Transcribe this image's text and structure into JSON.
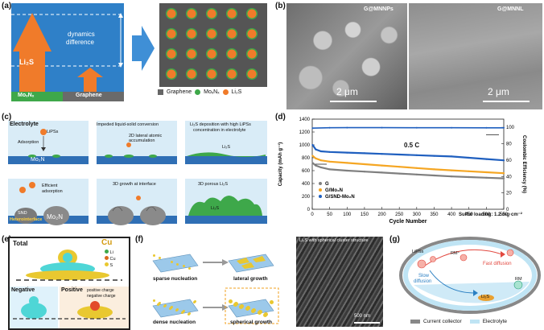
{
  "panels": {
    "a": {
      "label": "(a)",
      "arrow_left_text": "Li₂S",
      "dynamics_text_1": "dynamics",
      "dynamics_text_2": "difference",
      "base_left": "MoₓNₓ",
      "base_right": "Graphene",
      "legend": [
        "Graphene",
        "MoₓNₓ",
        "Li₂S"
      ]
    },
    "b": {
      "label": "(b)",
      "left_title": "G@MNNPs",
      "right_title": "G@MNNL",
      "scale_left": "2 μm",
      "scale_right": "2 μm"
    },
    "c": {
      "label": "(c)",
      "electrolyte": "Electrolyte",
      "lipss": "LiPSs",
      "adsorption": "Adsorption",
      "mo2n_top": "Mo₂N",
      "impeded": "Impeded liquid-solid conversion",
      "lateral": "2D lateral atomic accumulation",
      "deposition_1": "Li₂S deposition with high LiPSs",
      "deposition_2": "concentration in electrolyte",
      "li2s_top": "Li₂S",
      "efficient_1": "Efficient",
      "efficient_2": "adsorption",
      "snd": "SND",
      "mo2n_bottom": "Mo₂N",
      "heterointerface": "Heterointerface",
      "growth_3d": "3D growth at interface",
      "porous": "3D porous Li₂S",
      "li2s_bottom": "Li₂S"
    },
    "d": {
      "label": "(d)",
      "rate": "0.5 C",
      "loading": "Sulfur loading: 1.2 mg·cm⁻²"
    },
    "e": {
      "label": "(e)",
      "total": "Total",
      "cu_big": "Cu",
      "legend": [
        "Li",
        "Cu",
        "S"
      ],
      "negative": "Negative",
      "positive": "Positive",
      "note_1": "positive charge",
      "note_2": "negative charge"
    },
    "f": {
      "label": "(f)",
      "sparse": "sparse nucleation",
      "lateral": "lateral growth",
      "dense": "dense nucleation",
      "spherical": "spherical growth",
      "sem_title": "Li₂S with spherical cluster structure",
      "scale": "500 nm"
    },
    "g": {
      "label": "(g)",
      "lipss": "LiPSs",
      "rm_plus": "RM⁺",
      "fast": "Fast diffusion",
      "slow_1": "Slow",
      "slow_2": "diffusion",
      "rm": "RM",
      "li2s": "Li₂S",
      "legend_collector": "Current collector",
      "legend_electrolyte": "Electrolyte"
    }
  },
  "chart_data": {
    "type": "scatter",
    "title": "",
    "xlabel": "Cycle Number",
    "ylabel": "Capacity (mAh g⁻¹)",
    "y2label": "Coulombic Efficiency (%)",
    "xlim": [
      0,
      550
    ],
    "ylim": [
      0,
      1400
    ],
    "y2lim": [
      0,
      110
    ],
    "x_ticks": [
      0,
      50,
      100,
      150,
      200,
      250,
      300,
      350,
      400,
      450,
      500,
      550
    ],
    "y_ticks": [
      0,
      200,
      400,
      600,
      800,
      1000,
      1200,
      1400
    ],
    "y2_ticks": [
      0,
      20,
      40,
      60,
      80,
      100
    ],
    "legend": "center-left",
    "series": [
      {
        "name": "G",
        "color": "#7f7f7f",
        "x": [
          1,
          10,
          25,
          50,
          100,
          150,
          200,
          250,
          300,
          350,
          400,
          450,
          500,
          550
        ],
        "y": [
          720,
          680,
          650,
          620,
          600,
          585,
          570,
          555,
          540,
          525,
          510,
          500,
          490,
          480
        ]
      },
      {
        "name": "G/Mo₂N",
        "color": "#f5a623",
        "x": [
          1,
          10,
          25,
          50,
          100,
          150,
          200,
          250,
          300,
          350,
          400,
          450,
          500,
          550
        ],
        "y": [
          830,
          790,
          760,
          740,
          720,
          700,
          680,
          660,
          640,
          620,
          605,
          590,
          575,
          560
        ]
      },
      {
        "name": "G/SND-Mo₂N",
        "color": "#1f5fbf",
        "x": [
          1,
          10,
          25,
          50,
          100,
          150,
          200,
          250,
          300,
          350,
          400,
          450,
          500,
          550
        ],
        "y": [
          1000,
          930,
          900,
          890,
          880,
          870,
          860,
          850,
          840,
          830,
          820,
          800,
          780,
          760
        ]
      },
      {
        "name": "CE",
        "color": "#1f5fbf",
        "x": [
          1,
          50,
          100,
          200,
          300,
          400,
          500,
          550
        ],
        "y2": [
          99,
          99.5,
          99.6,
          99.6,
          99.5,
          99.5,
          99.4,
          99.4
        ]
      }
    ]
  }
}
